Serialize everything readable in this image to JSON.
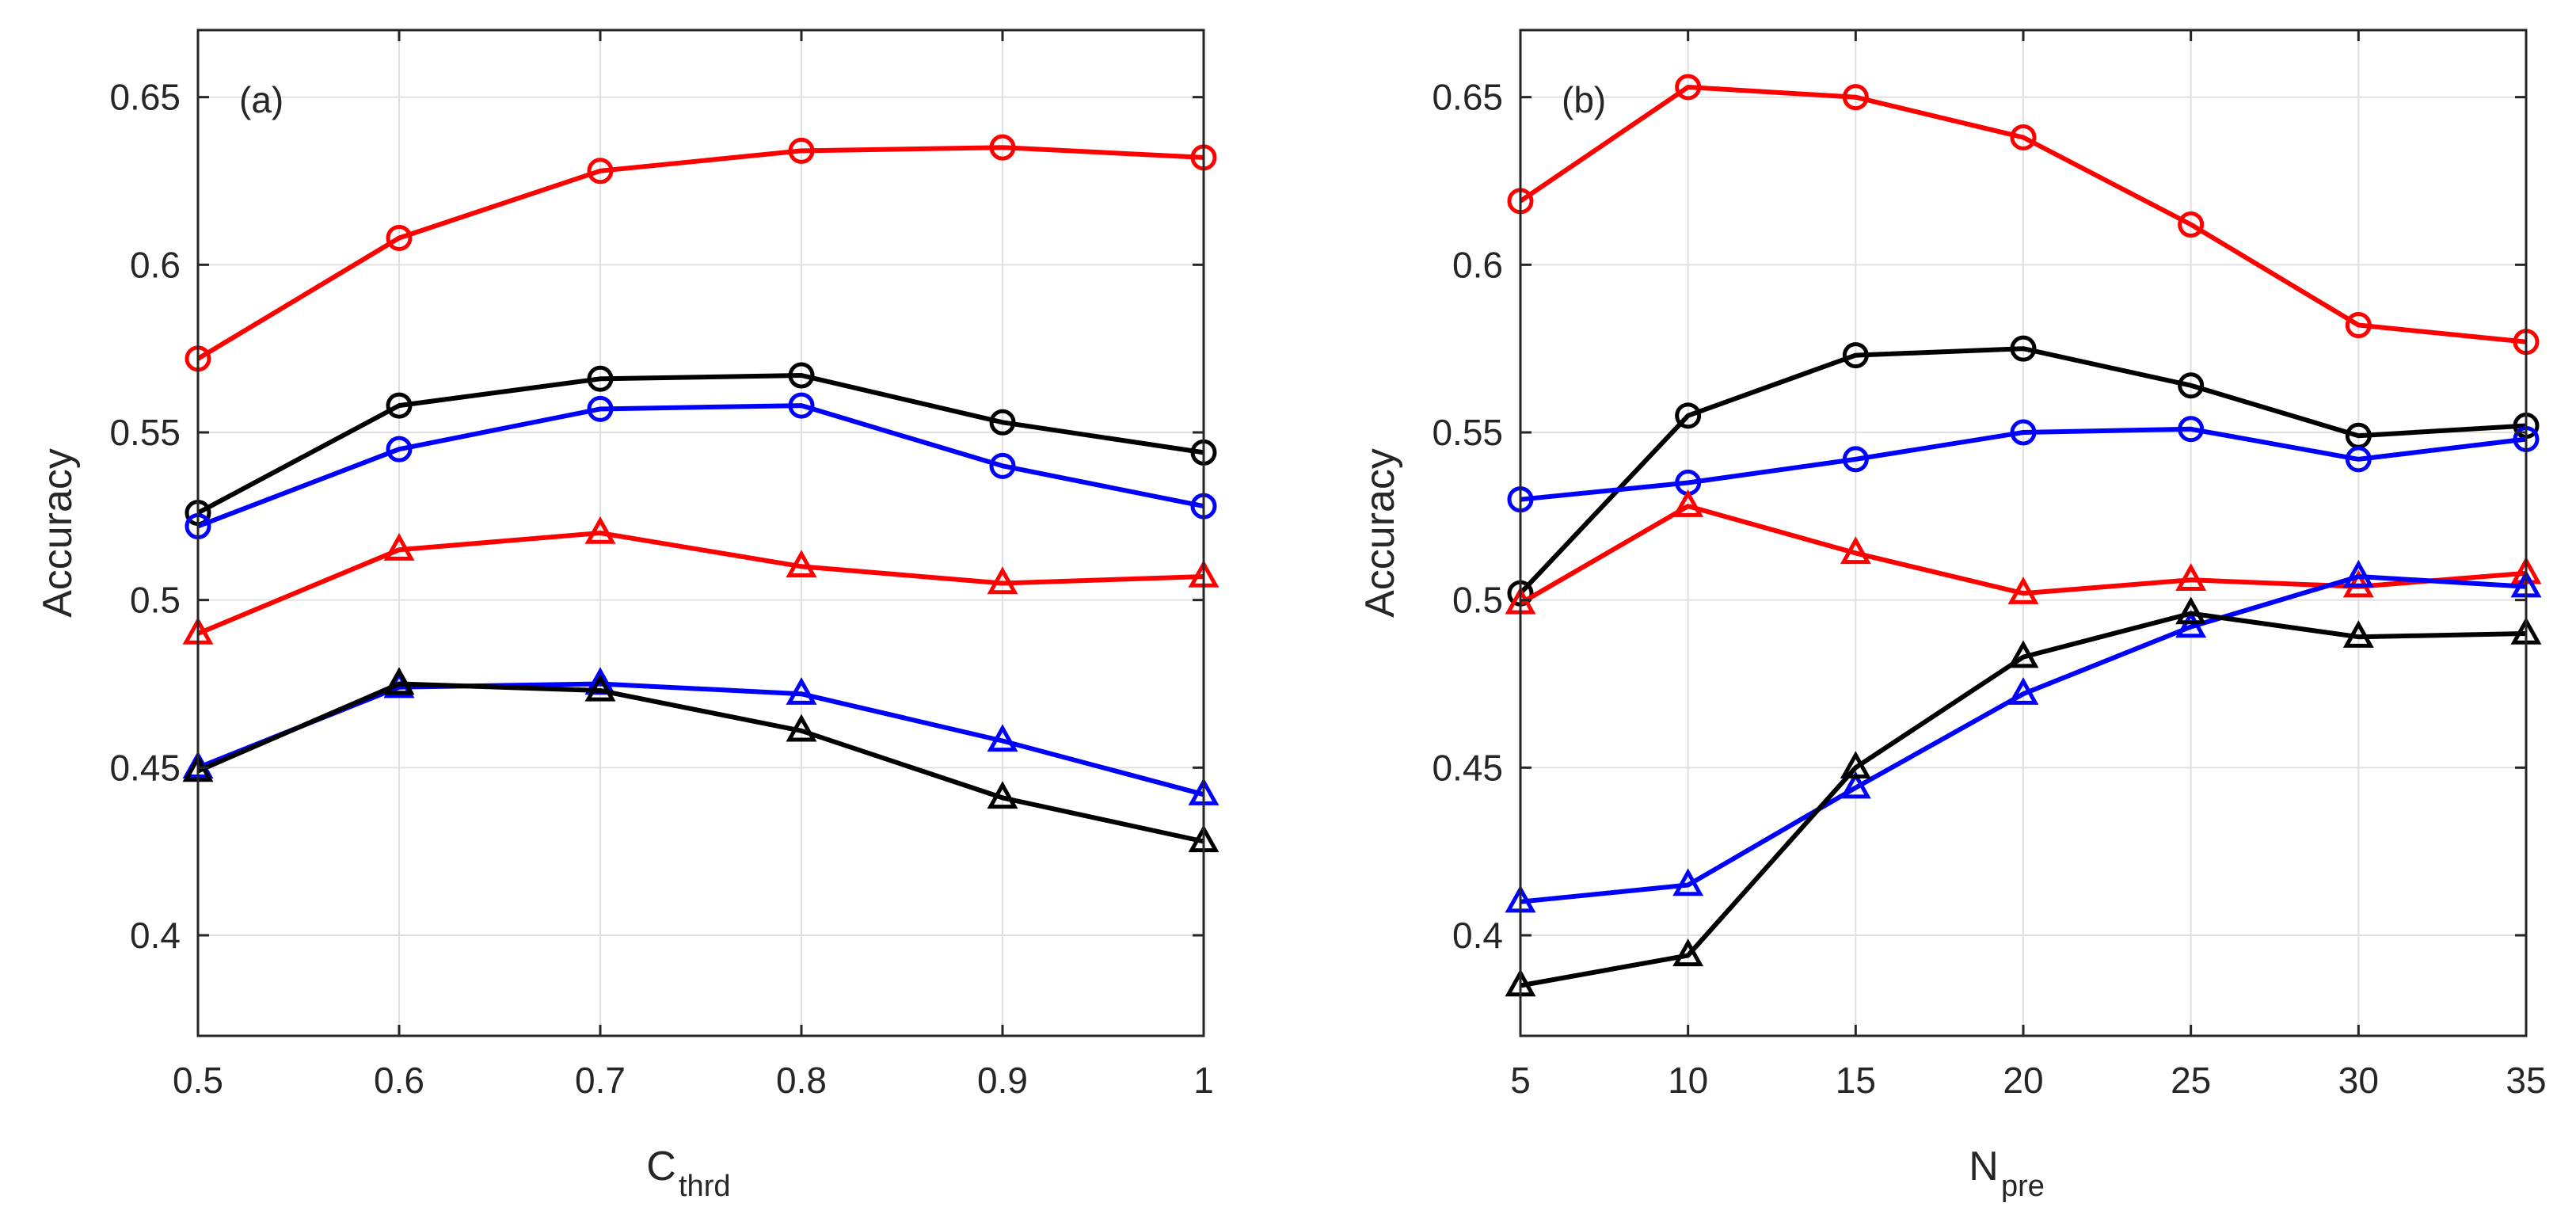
{
  "colors": {
    "red": "#ff0000",
    "blue": "#0000ff",
    "black": "#000000",
    "grid": "#e0e0e0",
    "axis": "#262626"
  },
  "chart_data": [
    {
      "type": "line",
      "panel_label": "(a)",
      "xlabel": {
        "main": "C",
        "sub": "thrd"
      },
      "ylabel": "Accuracy",
      "xlim": [
        0.5,
        1.0
      ],
      "ylim": [
        0.37,
        0.67
      ],
      "grid": true,
      "xticks": [
        0.5,
        0.6,
        0.7,
        0.8,
        0.9,
        1.0
      ],
      "xtick_labels": [
        "0.5",
        "0.6",
        "0.7",
        "0.8",
        "0.9",
        "1"
      ],
      "yticks": [
        0.4,
        0.45,
        0.5,
        0.55,
        0.6,
        0.65
      ],
      "ytick_labels": [
        "0.4",
        "0.45",
        "0.5",
        "0.55",
        "0.6",
        "0.65"
      ],
      "x": [
        0.5,
        0.6,
        0.7,
        0.8,
        0.9,
        1.0
      ],
      "series": [
        {
          "color": "red",
          "marker": "circle",
          "values": [
            0.572,
            0.608,
            0.628,
            0.634,
            0.635,
            0.632
          ]
        },
        {
          "color": "black",
          "marker": "circle",
          "values": [
            0.526,
            0.558,
            0.566,
            0.567,
            0.553,
            0.544
          ]
        },
        {
          "color": "blue",
          "marker": "circle",
          "values": [
            0.522,
            0.545,
            0.557,
            0.558,
            0.54,
            0.528
          ]
        },
        {
          "color": "red",
          "marker": "triangle",
          "values": [
            0.49,
            0.515,
            0.52,
            0.51,
            0.505,
            0.507
          ]
        },
        {
          "color": "blue",
          "marker": "triangle",
          "values": [
            0.45,
            0.474,
            0.475,
            0.472,
            0.458,
            0.442
          ]
        },
        {
          "color": "black",
          "marker": "triangle",
          "values": [
            0.449,
            0.475,
            0.473,
            0.461,
            0.441,
            0.428
          ]
        }
      ]
    },
    {
      "type": "line",
      "panel_label": "(b)",
      "xlabel": {
        "main": "N",
        "sub": "pre"
      },
      "ylabel": "Accuracy",
      "xlim": [
        5,
        35
      ],
      "ylim": [
        0.37,
        0.67
      ],
      "grid": true,
      "xticks": [
        5,
        10,
        15,
        20,
        25,
        30,
        35
      ],
      "xtick_labels": [
        "5",
        "10",
        "15",
        "20",
        "25",
        "30",
        "35"
      ],
      "yticks": [
        0.4,
        0.45,
        0.5,
        0.55,
        0.6,
        0.65
      ],
      "ytick_labels": [
        "0.4",
        "0.45",
        "0.5",
        "0.55",
        "0.6",
        "0.65"
      ],
      "x": [
        5,
        10,
        15,
        20,
        25,
        30,
        35
      ],
      "series": [
        {
          "color": "red",
          "marker": "circle",
          "values": [
            0.619,
            0.653,
            0.65,
            0.638,
            0.612,
            0.582,
            0.577
          ]
        },
        {
          "color": "black",
          "marker": "circle",
          "values": [
            0.502,
            0.555,
            0.573,
            0.575,
            0.564,
            0.549,
            0.552
          ]
        },
        {
          "color": "blue",
          "marker": "circle",
          "values": [
            0.53,
            0.535,
            0.542,
            0.55,
            0.551,
            0.542,
            0.548
          ]
        },
        {
          "color": "red",
          "marker": "triangle",
          "values": [
            0.499,
            0.528,
            0.514,
            0.502,
            0.506,
            0.504,
            0.508
          ]
        },
        {
          "color": "blue",
          "marker": "triangle",
          "values": [
            0.41,
            0.415,
            0.444,
            0.472,
            0.492,
            0.507,
            0.504
          ]
        },
        {
          "color": "black",
          "marker": "triangle",
          "values": [
            0.385,
            0.394,
            0.45,
            0.483,
            0.496,
            0.489,
            0.49
          ]
        }
      ]
    }
  ]
}
